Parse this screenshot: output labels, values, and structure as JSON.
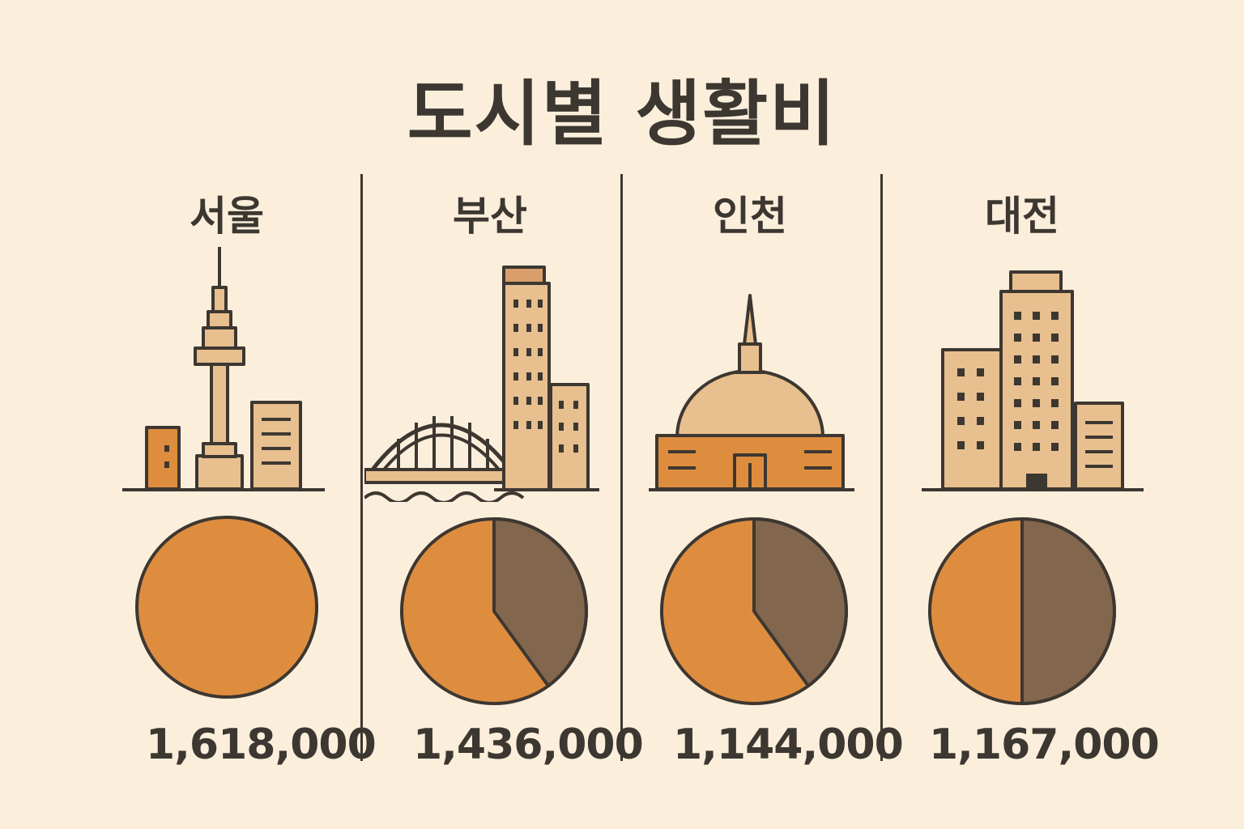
{
  "title": "도시별 생활비",
  "colors": {
    "primary": "#de8d3f",
    "secondary": "#82674e",
    "outline": "#3d3731",
    "building": "#e8bf8e",
    "background": "#fbefdc"
  },
  "chart_data": {
    "type": "pie",
    "title": "도시별 생활비",
    "cities": [
      {
        "name": "서울",
        "value_label": "1,618,000",
        "value": 1618000,
        "illustration": "namsan-tower-icon",
        "share": [
          1.0,
          0.0
        ]
      },
      {
        "name": "부산",
        "value_label": "1,436,000",
        "value": 1436000,
        "illustration": "bridge-and-towers-icon",
        "share": [
          0.6,
          0.4
        ]
      },
      {
        "name": "인천",
        "value_label": "1,144,000",
        "value": 1144000,
        "illustration": "dome-building-icon",
        "share": [
          0.6,
          0.4
        ]
      },
      {
        "name": "대전",
        "value_label": "1,167,000",
        "value": 1167000,
        "illustration": "office-buildings-icon",
        "share": [
          0.5,
          0.5
        ]
      }
    ]
  }
}
